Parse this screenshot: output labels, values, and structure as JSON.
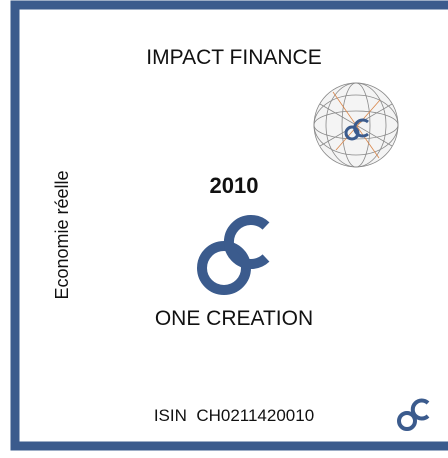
{
  "header": {
    "title": "IMPACT FINANCE"
  },
  "side_label": "Economie réelle",
  "year": "2010",
  "brand": "ONE CREATION",
  "isin": "ISIN  CH0211420010"
}
